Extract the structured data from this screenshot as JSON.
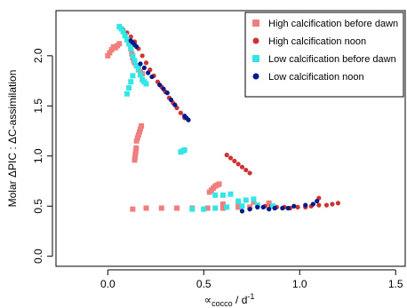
{
  "chart_data": {
    "type": "scatter",
    "title": "",
    "xlabel": "∝",
    "xlabel_subscript": "cocco",
    "xlabel_suffix": " / d",
    "xlabel_superscript": "-1",
    "ylabel": "Molar ΔPIC : ΔC-assimilation",
    "xlim": [
      -0.27,
      1.55
    ],
    "ylim": [
      -0.1,
      2.45
    ],
    "x_ticks": [
      "0.0",
      "0.5",
      "1.0",
      "1.5"
    ],
    "y_ticks": [
      "0.0",
      "0.5",
      "1.0",
      "1.5",
      "2.0"
    ],
    "grid": false,
    "legend_position": "top-right",
    "series": [
      {
        "name": "High calcification before dawn",
        "color": "#ef7f7f",
        "marker": "square",
        "points": [
          [
            0.0,
            2.0
          ],
          [
            0.01,
            2.03
          ],
          [
            0.02,
            2.06
          ],
          [
            0.03,
            2.09
          ],
          [
            0.04,
            2.08
          ],
          [
            0.05,
            2.1
          ],
          [
            0.06,
            2.12
          ],
          [
            0.12,
            2.07
          ],
          [
            0.125,
            2.02
          ],
          [
            0.13,
            1.98
          ],
          [
            0.135,
            1.95
          ],
          [
            0.14,
            1.93
          ],
          [
            0.15,
            1.9
          ],
          [
            0.16,
            1.86
          ],
          [
            0.17,
            1.84
          ],
          [
            0.18,
            1.82
          ],
          [
            0.15,
            1.15
          ],
          [
            0.155,
            1.18
          ],
          [
            0.16,
            1.21
          ],
          [
            0.165,
            1.24
          ],
          [
            0.17,
            1.27
          ],
          [
            0.175,
            1.3
          ],
          [
            0.14,
            0.96
          ],
          [
            0.142,
            0.99
          ],
          [
            0.144,
            1.02
          ],
          [
            0.146,
            1.05
          ],
          [
            0.148,
            1.08
          ],
          [
            0.53,
            0.64
          ],
          [
            0.54,
            0.66
          ],
          [
            0.55,
            0.68
          ],
          [
            0.56,
            0.7
          ],
          [
            0.57,
            0.71
          ],
          [
            0.58,
            0.72
          ],
          [
            0.13,
            0.47
          ],
          [
            0.2,
            0.48
          ],
          [
            0.28,
            0.48
          ],
          [
            0.36,
            0.48
          ],
          [
            0.44,
            0.48
          ],
          [
            0.52,
            0.48
          ],
          [
            0.6,
            0.48
          ],
          [
            0.68,
            0.49
          ],
          [
            0.74,
            0.49
          ],
          [
            0.6,
            0.52
          ],
          [
            0.68,
            0.53
          ],
          [
            0.76,
            0.54
          ],
          [
            0.84,
            0.53
          ]
        ]
      },
      {
        "name": "High calcification noon",
        "color": "#cc3333",
        "marker": "circle",
        "points": [
          [
            0.08,
            2.26
          ],
          [
            0.1,
            2.23
          ],
          [
            0.12,
            2.19
          ],
          [
            0.14,
            2.14
          ],
          [
            0.16,
            2.07
          ],
          [
            0.18,
            2.0
          ],
          [
            0.2,
            1.93
          ],
          [
            0.22,
            1.86
          ],
          [
            0.24,
            1.8
          ],
          [
            0.26,
            1.74
          ],
          [
            0.28,
            1.69
          ],
          [
            0.3,
            1.64
          ],
          [
            0.32,
            1.58
          ],
          [
            0.34,
            1.53
          ],
          [
            0.36,
            1.48
          ],
          [
            0.38,
            1.43
          ],
          [
            0.4,
            1.38
          ],
          [
            0.62,
            1.01
          ],
          [
            0.64,
            0.98
          ],
          [
            0.66,
            0.95
          ],
          [
            0.68,
            0.92
          ],
          [
            0.7,
            0.89
          ],
          [
            0.72,
            0.86
          ],
          [
            0.74,
            0.83
          ],
          [
            0.82,
            0.5
          ],
          [
            0.85,
            0.5
          ],
          [
            0.88,
            0.49
          ],
          [
            0.92,
            0.49
          ],
          [
            0.95,
            0.48
          ],
          [
            0.99,
            0.49
          ],
          [
            1.03,
            0.49
          ],
          [
            1.06,
            0.5
          ],
          [
            1.1,
            0.51
          ],
          [
            1.14,
            0.51
          ],
          [
            1.17,
            0.52
          ],
          [
            1.2,
            0.53
          ],
          [
            1.1,
            0.58
          ]
        ]
      },
      {
        "name": "Low calcification before dawn",
        "color": "#33e6e6",
        "marker": "square",
        "points": [
          [
            0.06,
            2.29
          ],
          [
            0.07,
            2.27
          ],
          [
            0.08,
            2.24
          ],
          [
            0.09,
            2.2
          ],
          [
            0.1,
            2.16
          ],
          [
            0.11,
            2.12
          ],
          [
            0.12,
            2.07
          ],
          [
            0.13,
            2.0
          ],
          [
            0.14,
            1.95
          ],
          [
            0.15,
            1.9
          ],
          [
            0.16,
            1.87
          ],
          [
            0.17,
            1.81
          ],
          [
            0.18,
            1.76
          ],
          [
            0.19,
            1.74
          ],
          [
            0.2,
            1.72
          ],
          [
            0.1,
            1.62
          ],
          [
            0.11,
            1.68
          ],
          [
            0.12,
            1.74
          ],
          [
            0.13,
            1.8
          ],
          [
            0.38,
            1.04
          ],
          [
            0.39,
            1.05
          ],
          [
            0.4,
            1.06
          ],
          [
            0.44,
            0.47
          ],
          [
            0.5,
            0.47
          ],
          [
            0.56,
            0.48
          ],
          [
            0.62,
            0.49
          ],
          [
            0.7,
            0.5
          ],
          [
            0.78,
            0.51
          ],
          [
            0.86,
            0.5
          ],
          [
            0.56,
            0.61
          ],
          [
            0.6,
            0.61
          ],
          [
            0.64,
            0.62
          ],
          [
            0.68,
            0.55
          ],
          [
            0.72,
            0.56
          ],
          [
            0.76,
            0.57
          ]
        ]
      },
      {
        "name": "Low calcification noon",
        "color": "#001a8c",
        "marker": "circle",
        "points": [
          [
            0.12,
            2.15
          ],
          [
            0.13,
            2.13
          ],
          [
            0.14,
            2.11
          ],
          [
            0.15,
            2.09
          ],
          [
            0.17,
            1.92
          ],
          [
            0.19,
            1.88
          ],
          [
            0.21,
            1.83
          ],
          [
            0.23,
            1.79
          ],
          [
            0.27,
            1.71
          ],
          [
            0.29,
            1.67
          ],
          [
            0.31,
            1.63
          ],
          [
            0.33,
            1.56
          ],
          [
            0.35,
            1.51
          ],
          [
            0.4,
            1.4
          ],
          [
            0.41,
            1.38
          ],
          [
            0.42,
            1.36
          ],
          [
            0.78,
            0.49
          ],
          [
            0.81,
            0.49
          ],
          [
            0.84,
            0.47
          ],
          [
            0.87,
            0.48
          ],
          [
            0.91,
            0.48
          ],
          [
            0.94,
            0.48
          ],
          [
            0.97,
            0.5
          ],
          [
            1.03,
            0.51
          ],
          [
            1.07,
            0.52
          ],
          [
            1.09,
            0.55
          ],
          [
            0.7,
            0.45
          ],
          [
            0.74,
            0.47
          ]
        ]
      }
    ]
  }
}
